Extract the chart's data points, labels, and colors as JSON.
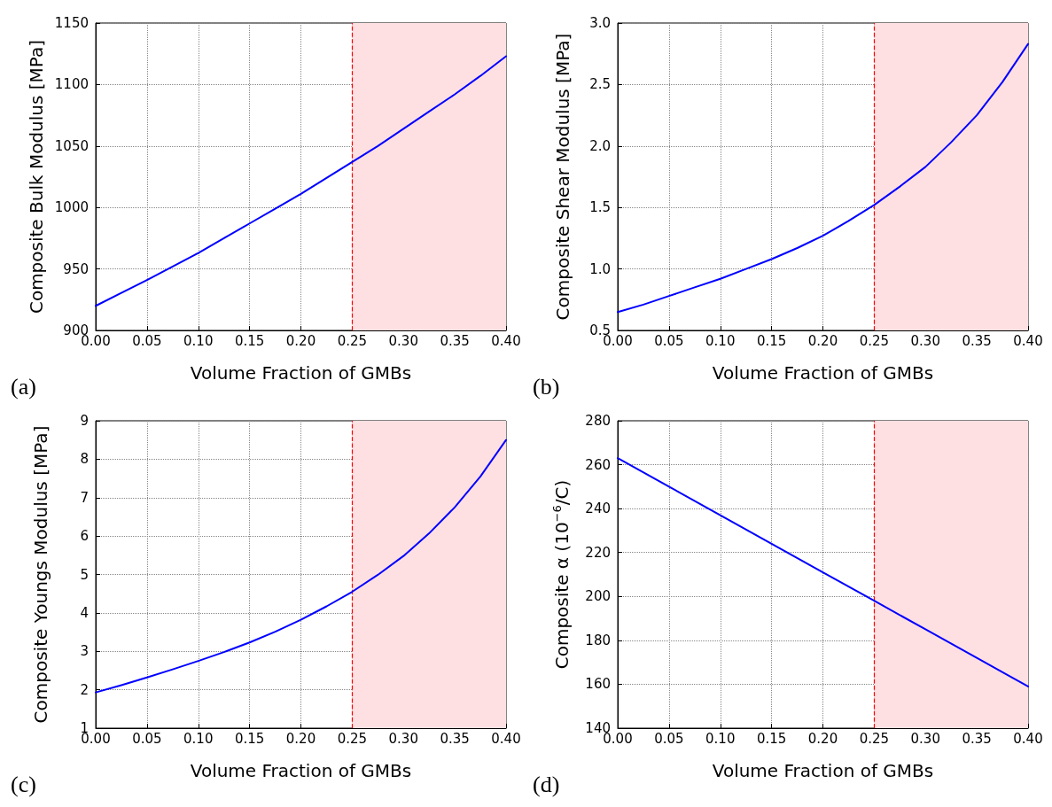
{
  "chart_data": [
    {
      "type": "line",
      "xlabel": "Volume Fraction of GMBs",
      "ylabel": "Composite Bulk Modulus [MPa]",
      "annotations": [
        "(a)"
      ],
      "x": [
        0,
        0.025,
        0.05,
        0.075,
        0.1,
        0.125,
        0.15,
        0.175,
        0.2,
        0.225,
        0.25,
        0.275,
        0.3,
        0.325,
        0.35,
        0.375,
        0.4
      ],
      "series": [
        {
          "color": "#0000ff",
          "values": [
            920,
            930.5,
            941,
            952,
            963,
            975,
            987,
            999,
            1011,
            1024,
            1037,
            1050,
            1064,
            1078,
            1092,
            1107,
            1123
          ]
        }
      ],
      "xlim": [
        0,
        0.4
      ],
      "xticks": [
        {
          "value": 0,
          "label": "0.00"
        },
        {
          "value": 0.05,
          "label": "0.05"
        },
        {
          "value": 0.1,
          "label": "0.10"
        },
        {
          "value": 0.15,
          "label": "0.15"
        },
        {
          "value": 0.2,
          "label": "0.20"
        },
        {
          "value": 0.25,
          "label": "0.25"
        },
        {
          "value": 0.3,
          "label": "0.30"
        },
        {
          "value": 0.35,
          "label": "0.35"
        },
        {
          "value": 0.4,
          "label": "0.40"
        }
      ],
      "ylim": [
        900,
        1150
      ],
      "yticks": [
        900,
        950,
        1000,
        1050,
        1100,
        1150
      ],
      "ref_lines": [
        {
          "axis": "x",
          "value": 0.25,
          "color": "#ff0000",
          "line_style": "dashed"
        }
      ],
      "bands": [
        {
          "axis": "x",
          "from": 0.25,
          "to": 0.4,
          "color": "#ffe0e2"
        }
      ],
      "grid": true,
      "marker": "none",
      "line_style": "solid"
    },
    {
      "type": "line",
      "xlabel": "Volume Fraction of GMBs",
      "ylabel": "Composite Shear Modulus [MPa]",
      "annotations": [
        "(b)"
      ],
      "x": [
        0,
        0.025,
        0.05,
        0.075,
        0.1,
        0.125,
        0.15,
        0.175,
        0.2,
        0.225,
        0.25,
        0.275,
        0.3,
        0.325,
        0.35,
        0.375,
        0.4
      ],
      "series": [
        {
          "color": "#0000ff",
          "values": [
            0.65,
            0.71,
            0.78,
            0.85,
            0.92,
            1.0,
            1.08,
            1.17,
            1.27,
            1.39,
            1.52,
            1.67,
            1.83,
            2.03,
            2.25,
            2.52,
            2.83
          ]
        }
      ],
      "xlim": [
        0,
        0.4
      ],
      "xticks": [
        {
          "value": 0,
          "label": "0.00"
        },
        {
          "value": 0.05,
          "label": "0.05"
        },
        {
          "value": 0.1,
          "label": "0.10"
        },
        {
          "value": 0.15,
          "label": "0.15"
        },
        {
          "value": 0.2,
          "label": "0.20"
        },
        {
          "value": 0.25,
          "label": "0.25"
        },
        {
          "value": 0.3,
          "label": "0.30"
        },
        {
          "value": 0.35,
          "label": "0.35"
        },
        {
          "value": 0.4,
          "label": "0.40"
        }
      ],
      "ylim": [
        0.5,
        3
      ],
      "yticks": [
        0.5,
        {
          "value": 1,
          "label": "1.0"
        },
        1.5,
        {
          "value": 2,
          "label": "2.0"
        },
        2.5,
        {
          "value": 3,
          "label": "3.0"
        }
      ],
      "ref_lines": [
        {
          "axis": "x",
          "value": 0.25,
          "color": "#ff0000",
          "line_style": "dashed"
        }
      ],
      "bands": [
        {
          "axis": "x",
          "from": 0.25,
          "to": 0.4,
          "color": "#ffe0e2"
        }
      ],
      "grid": true,
      "marker": "none",
      "line_style": "solid"
    },
    {
      "type": "line",
      "xlabel": "Volume Fraction of GMBs",
      "ylabel": "Composite Youngs Modulus [MPa]",
      "annotations": [
        "(c)"
      ],
      "x": [
        0,
        0.025,
        0.05,
        0.075,
        0.1,
        0.125,
        0.15,
        0.175,
        0.2,
        0.225,
        0.25,
        0.275,
        0.3,
        0.325,
        0.35,
        0.375,
        0.4
      ],
      "series": [
        {
          "color": "#0000ff",
          "values": [
            1.93,
            2.12,
            2.32,
            2.53,
            2.75,
            2.98,
            3.23,
            3.51,
            3.82,
            4.17,
            4.55,
            4.99,
            5.48,
            6.07,
            6.75,
            7.55,
            8.5
          ]
        }
      ],
      "xlim": [
        0,
        0.4
      ],
      "xticks": [
        {
          "value": 0,
          "label": "0.00"
        },
        {
          "value": 0.05,
          "label": "0.05"
        },
        {
          "value": 0.1,
          "label": "0.10"
        },
        {
          "value": 0.15,
          "label": "0.15"
        },
        {
          "value": 0.2,
          "label": "0.20"
        },
        {
          "value": 0.25,
          "label": "0.25"
        },
        {
          "value": 0.3,
          "label": "0.30"
        },
        {
          "value": 0.35,
          "label": "0.35"
        },
        {
          "value": 0.4,
          "label": "0.40"
        }
      ],
      "ylim": [
        1,
        9
      ],
      "yticks": [
        1,
        2,
        3,
        4,
        5,
        6,
        7,
        8,
        9
      ],
      "ref_lines": [
        {
          "axis": "x",
          "value": 0.25,
          "color": "#ff0000",
          "line_style": "dashed"
        }
      ],
      "bands": [
        {
          "axis": "x",
          "from": 0.25,
          "to": 0.4,
          "color": "#ffe0e2"
        }
      ],
      "grid": true,
      "marker": "none",
      "line_style": "solid"
    },
    {
      "type": "line",
      "xlabel": "Volume Fraction of GMBs",
      "ylabel": "Composite α (10$^{−6}$/C)",
      "annotations": [
        "(d)"
      ],
      "x": [
        0,
        0.05,
        0.1,
        0.15,
        0.2,
        0.25,
        0.3,
        0.35,
        0.4
      ],
      "series": [
        {
          "color": "#0000ff",
          "values": [
            263,
            250,
            237,
            224,
            211,
            198,
            185,
            172,
            159
          ]
        }
      ],
      "xlim": [
        0,
        0.4
      ],
      "xticks": [
        {
          "value": 0,
          "label": "0.00"
        },
        {
          "value": 0.05,
          "label": "0.05"
        },
        {
          "value": 0.1,
          "label": "0.10"
        },
        {
          "value": 0.15,
          "label": "0.15"
        },
        {
          "value": 0.2,
          "label": "0.20"
        },
        {
          "value": 0.25,
          "label": "0.25"
        },
        {
          "value": 0.3,
          "label": "0.30"
        },
        {
          "value": 0.35,
          "label": "0.35"
        },
        {
          "value": 0.4,
          "label": "0.40"
        }
      ],
      "ylim": [
        140,
        280
      ],
      "yticks": [
        140,
        160,
        180,
        200,
        220,
        240,
        260,
        280
      ],
      "ref_lines": [
        {
          "axis": "x",
          "value": 0.25,
          "color": "#ff0000",
          "line_style": "dashed"
        }
      ],
      "bands": [
        {
          "axis": "x",
          "from": 0.25,
          "to": 0.4,
          "color": "#ffe0e2"
        }
      ],
      "grid": true,
      "marker": "none",
      "line_style": "solid"
    }
  ]
}
